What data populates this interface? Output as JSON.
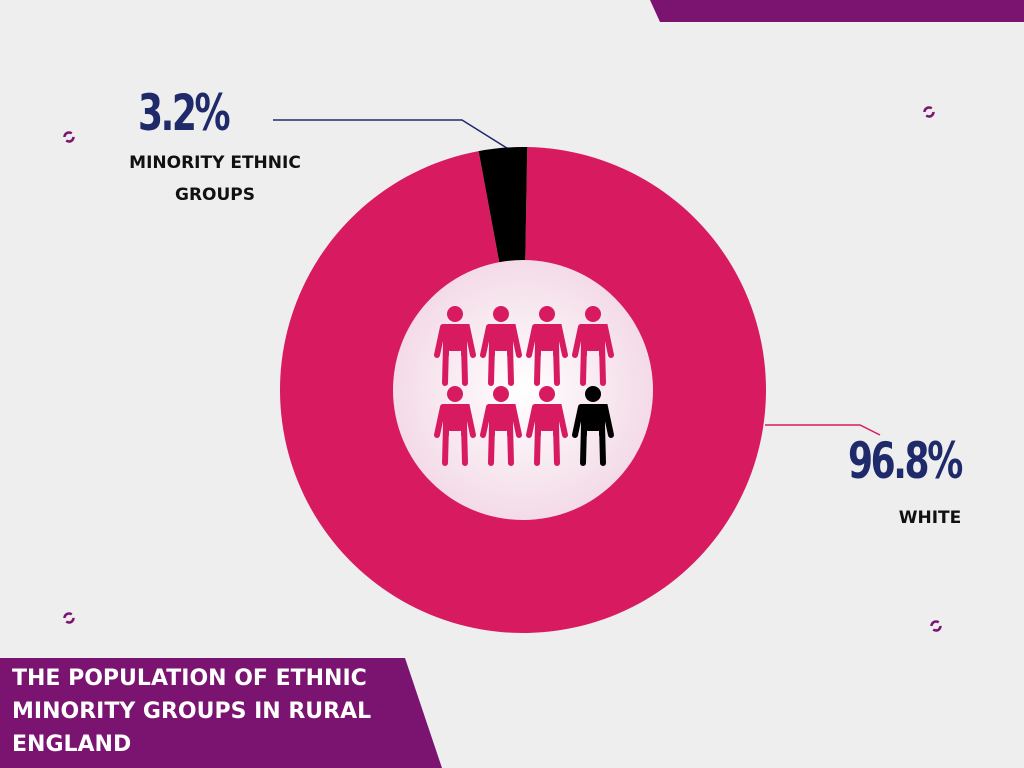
{
  "chart_data": {
    "type": "donut",
    "title": "THE POPULATION OF ETHNIC MINORITY GROUPS IN RURAL ENGLAND",
    "categories": [
      "WHITE",
      "MINORITY ETHNIC GROUPS"
    ],
    "values": [
      96.8,
      3.2
    ],
    "value_labels": [
      "96.8%",
      "3.2%"
    ],
    "colors": [
      "#d81b60",
      "#000000"
    ]
  }
}
